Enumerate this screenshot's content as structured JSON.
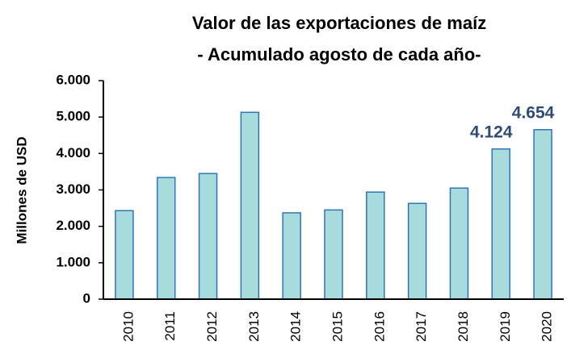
{
  "chart_data": {
    "type": "bar",
    "title": "Valor de las exportaciones de maíz",
    "subtitle": "- Acumulado agosto de cada año-",
    "y_label": "Millones de USD",
    "categories": [
      "2010",
      "2011",
      "2012",
      "2013",
      "2014",
      "2015",
      "2016",
      "2017",
      "2018",
      "2019",
      "2020"
    ],
    "values": [
      2430,
      3340,
      3450,
      5130,
      2370,
      2450,
      2940,
      2630,
      3050,
      4124,
      4654
    ],
    "value_labels": [
      null,
      null,
      null,
      null,
      null,
      null,
      null,
      null,
      null,
      "4.124",
      "4.654"
    ],
    "color": "#a8dcdc",
    "edge_color": "#2e75b6",
    "label_color": "#2f4a75",
    "ylim": [
      0,
      6000
    ],
    "yticks": [
      0,
      {
        "value": 1000,
        "label": "1.000"
      },
      {
        "value": 2000,
        "label": "2.000"
      },
      {
        "value": 3000,
        "label": "3.000"
      },
      {
        "value": 4000,
        "label": "4.000"
      },
      {
        "value": 5000,
        "label": "5.000"
      },
      {
        "value": 6000,
        "label": "6.000"
      }
    ],
    "grid": false
  }
}
